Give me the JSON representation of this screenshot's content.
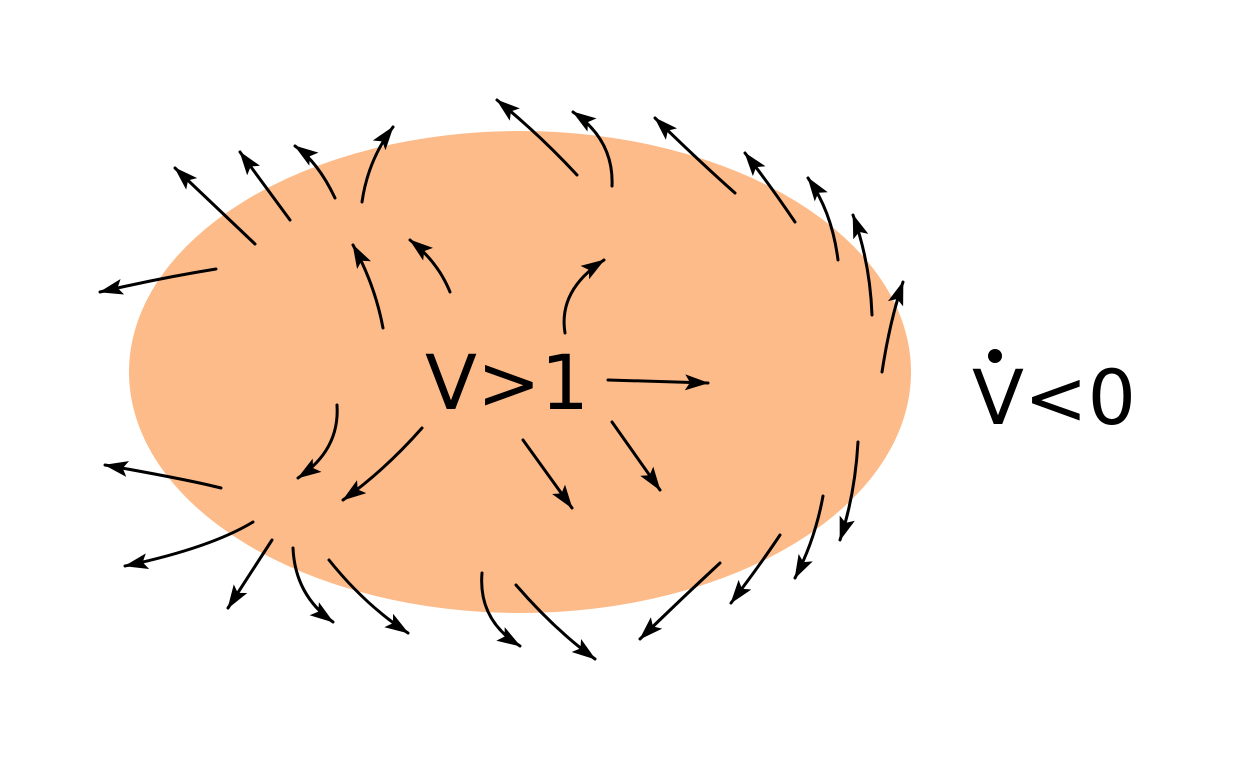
{
  "diagram": {
    "region_label": "V>1",
    "derivative_label": "V<0",
    "colors": {
      "region_fill": "#FDBB8A",
      "arrow": "#000000",
      "text": "#000000"
    }
  }
}
